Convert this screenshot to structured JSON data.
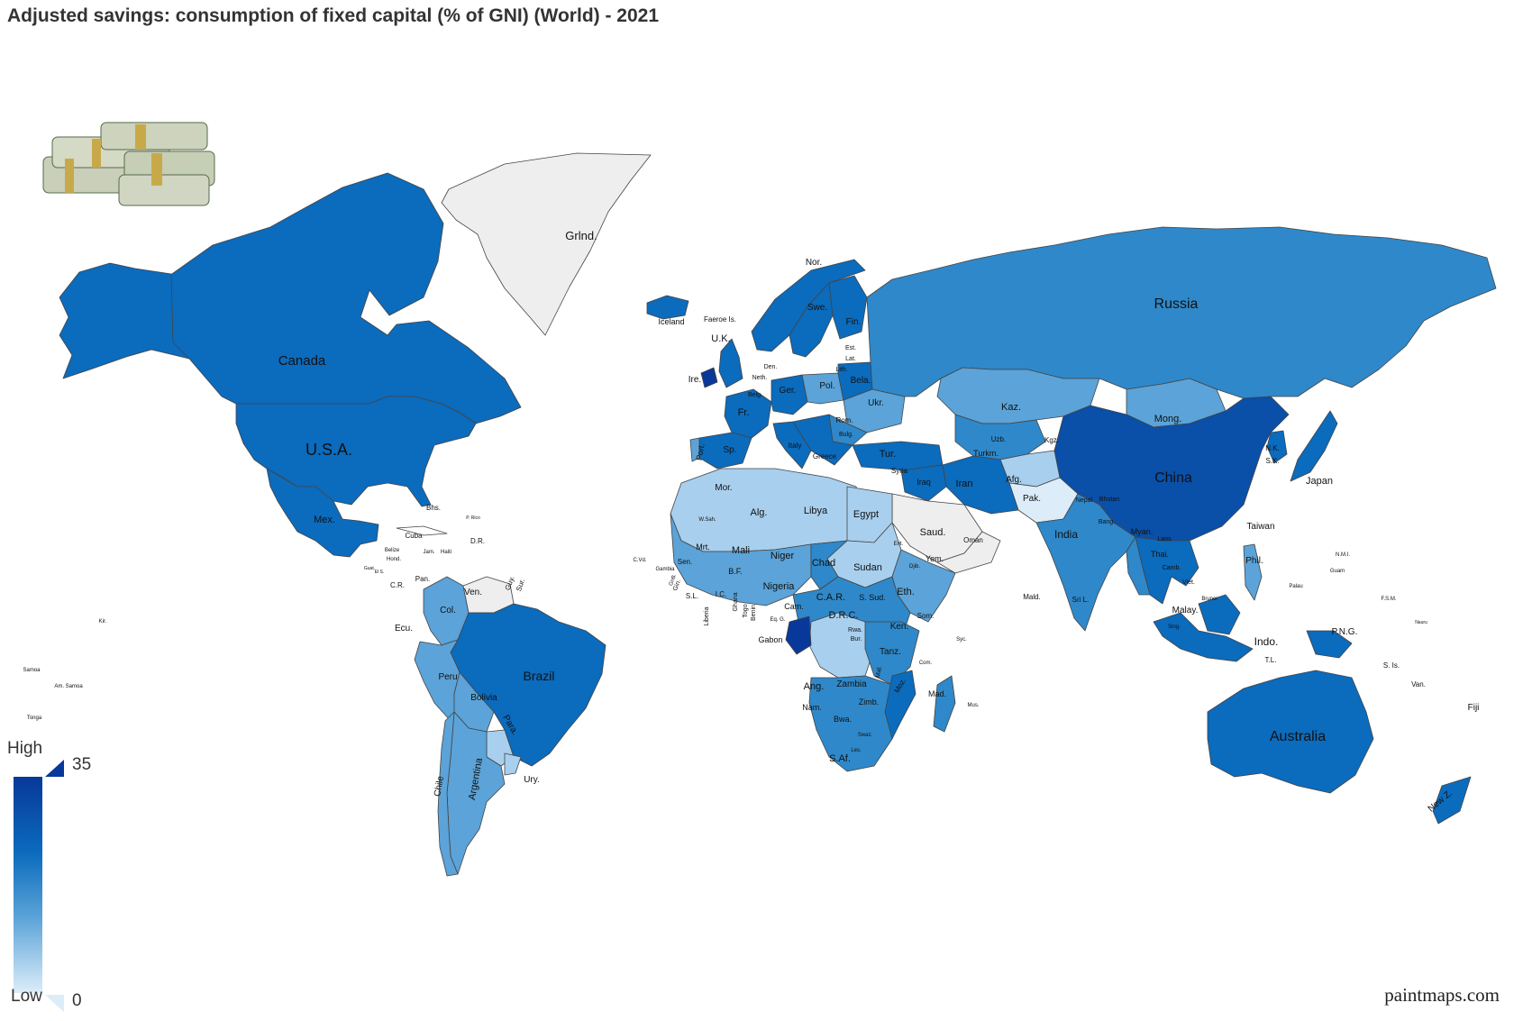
{
  "title": "Adjusted savings: consumption of fixed capital (% of GNI) (World) - 2021",
  "legend": {
    "high_label": "High",
    "low_label": "Low",
    "max": "35",
    "min": "0"
  },
  "credit": "paintmaps.com",
  "colors": {
    "ocean": "#ffffff",
    "no_data": "#eeeeee",
    "border": "#444444",
    "level_0": "#dcedf9",
    "level_1": "#a8cfee",
    "level_2": "#5ba3d8",
    "level_3": "#2f88c9",
    "level_4": "#0b6bbd",
    "level_5": "#08389a"
  },
  "icons": [
    "money-stack-icon"
  ],
  "labels": [
    "Grlnd.",
    "Russia",
    "Canada",
    "U.S.A.",
    "China",
    "Brazil",
    "Australia",
    "Kaz.",
    "Mong.",
    "India",
    "Iran",
    "Sudan",
    "Alg.",
    "Libya",
    "Egypt",
    "Niger",
    "Chad",
    "Mali",
    "Mrt.",
    "Mor.",
    "Nigeria",
    "D.R.C.",
    "Ang.",
    "Zambia",
    "S.Af.",
    "Nam.",
    "Bwa.",
    "Zimb.",
    "Tanz.",
    "Ken.",
    "Eth.",
    "Som.",
    "S. Sud.",
    "C.A.R.",
    "Cam.",
    "Gabon",
    "Saud.",
    "Yem.",
    "Oman",
    "Iraq",
    "Syria",
    "Tur.",
    "Afg.",
    "Pak.",
    "Turkm.",
    "Uzb.",
    "Kgz.",
    "Mex.",
    "Col.",
    "Ven.",
    "Peru",
    "Bolivia",
    "Para.",
    "Argentina",
    "Chile",
    "Ury.",
    "Ecu.",
    "Guy.",
    "Sur.",
    "Cuba",
    "Bhs.",
    "D.R.",
    "Pan.",
    "C.R.",
    "Iceland",
    "Faeroe Is.",
    "U.K.",
    "Ire.",
    "Nor.",
    "Swe.",
    "Fin.",
    "Pol.",
    "Ger.",
    "Fr.",
    "Sp.",
    "Port.",
    "Italy",
    "Greece",
    "Ukr.",
    "Bela.",
    "Rom.",
    "Bulg.",
    "Lith.",
    "Lat.",
    "Est.",
    "Den.",
    "Neth.",
    "Belg.",
    "Japan",
    "N.K.",
    "S.K.",
    "Taiwan",
    "Phil.",
    "Malay.",
    "Indo.",
    "P.N.G.",
    "Thai.",
    "Viet.",
    "Laos",
    "Camb.",
    "Myan.",
    "Bhutan",
    "Nepal",
    "Bang.",
    "Sri L.",
    "Mald.",
    "New Z.",
    "Fiji",
    "Van.",
    "S. Is.",
    "T.L.",
    "Mad.",
    "Moz.",
    "Mal.",
    "Rwa.",
    "Bur.",
    "Eq. G.",
    "Togo",
    "Benin",
    "Ghana",
    "B.F.",
    "I.C.",
    "Liberia",
    "S.L.",
    "Gin.",
    "GnB.",
    "Gambia",
    "Sen.",
    "W.Sah.",
    "C.Vd.",
    "Com.",
    "Mus.",
    "Syc.",
    "Sing.",
    "Brunei",
    "N.M.I.",
    "Guam",
    "Palau",
    "F.S.M.",
    "Nauru",
    "Samoa",
    "Am. Samoa",
    "Tonga",
    "Kir.",
    "Jam.",
    "Haiti",
    "Belize",
    "Hond.",
    "El S.",
    "Guat.",
    "P. Rico",
    "Djib.",
    "Erit.",
    "Swaz.",
    "Les."
  ]
}
